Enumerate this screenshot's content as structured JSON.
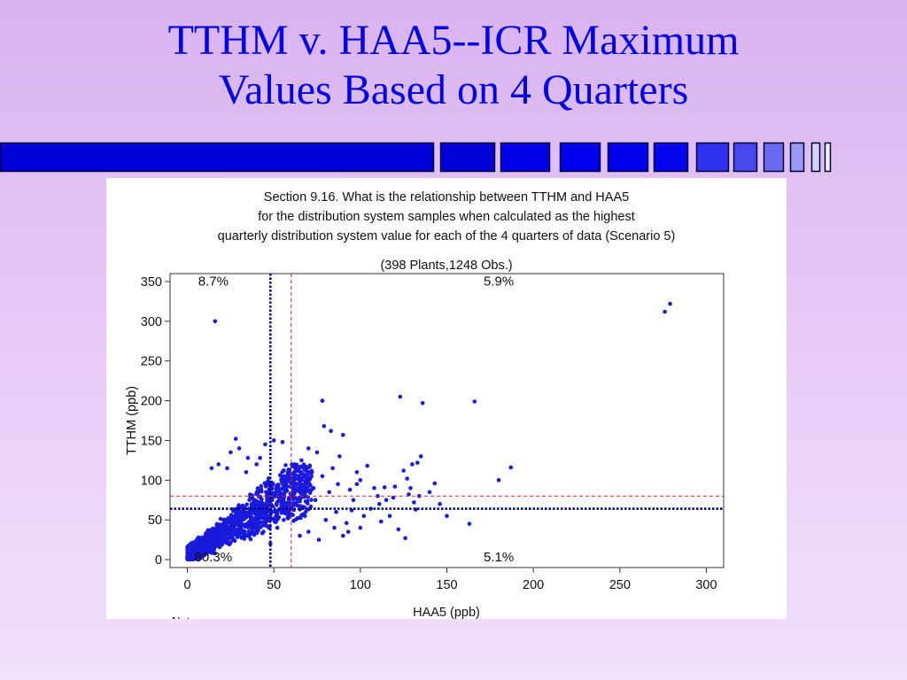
{
  "slide": {
    "title_line1": "TTHM v. HAA5--ICR Maximum",
    "title_line2": "Values Based on 4 Quarters"
  },
  "colors": {
    "title": "#0000e6",
    "points": "#1a1adc",
    "threshold_blue": "#00008b",
    "threshold_red": "#e02020"
  },
  "chart_data": {
    "type": "scatter",
    "title": [
      "Section 9.16. What is the relationship between TTHM and HAA5",
      "for the distribution system samples when calculated as the highest",
      "quarterly distribution system value for each of the 4 quarters of data (Scenario 5)"
    ],
    "subtitle": "(398 Plants,1248 Obs.)",
    "xlabel": "HAA5 (ppb)",
    "ylabel": "TTHM (ppb)",
    "xlim": [
      -10,
      310
    ],
    "ylim": [
      -10,
      360
    ],
    "xticks": [
      0,
      50,
      100,
      150,
      200,
      250,
      300
    ],
    "yticks": [
      0,
      50,
      100,
      150,
      200,
      250,
      300,
      350
    ],
    "grid": false,
    "footnote": "Note:",
    "reference_lines": [
      {
        "axis": "x",
        "value": 48,
        "style": "dotted",
        "color": "#00008b"
      },
      {
        "axis": "x",
        "value": 60,
        "style": "dashed",
        "color": "#e02020"
      },
      {
        "axis": "y",
        "value": 64,
        "style": "dotted",
        "color": "#00008b"
      },
      {
        "axis": "y",
        "value": 80,
        "style": "dashed",
        "color": "#e02020"
      }
    ],
    "quadrant_labels": [
      {
        "text": "8.7%",
        "x": 15,
        "y": 345
      },
      {
        "text": "5.9%",
        "x": 180,
        "y": 345
      },
      {
        "text": "80.3%",
        "x": 15,
        "y": -2
      },
      {
        "text": "5.1%",
        "x": 180,
        "y": -2
      }
    ],
    "cluster": {
      "count": 1248,
      "description": "dense cloud of observations at low HAA5 / TTHM",
      "x_range": [
        0,
        80
      ],
      "y_range": [
        0,
        120
      ]
    },
    "points": [
      [
        16,
        300
      ],
      [
        276,
        312
      ],
      [
        279,
        322
      ],
      [
        123,
        205
      ],
      [
        136,
        197
      ],
      [
        166,
        199
      ],
      [
        78,
        200
      ],
      [
        79,
        168
      ],
      [
        83,
        162
      ],
      [
        90,
        157
      ],
      [
        187,
        116
      ],
      [
        180,
        100
      ],
      [
        143,
        96
      ],
      [
        125,
        112
      ],
      [
        127,
        102
      ],
      [
        130,
        120
      ],
      [
        133,
        122
      ],
      [
        135,
        130
      ],
      [
        129,
        90
      ],
      [
        128,
        82
      ],
      [
        131,
        72
      ],
      [
        132,
        63
      ],
      [
        134,
        80
      ],
      [
        120,
        92
      ],
      [
        114,
        91
      ],
      [
        108,
        90
      ],
      [
        100,
        100
      ],
      [
        98,
        110
      ],
      [
        104,
        118
      ],
      [
        96,
        75
      ],
      [
        95,
        62
      ],
      [
        92,
        46
      ],
      [
        112,
        48
      ],
      [
        122,
        38
      ],
      [
        126,
        27
      ],
      [
        117,
        55
      ],
      [
        119,
        78
      ],
      [
        111,
        70
      ],
      [
        163,
        45
      ],
      [
        140,
        85
      ],
      [
        146,
        70
      ],
      [
        150,
        55
      ],
      [
        88,
        130
      ],
      [
        84,
        115
      ],
      [
        87,
        95
      ],
      [
        86,
        60
      ],
      [
        75,
        135
      ],
      [
        70,
        140
      ],
      [
        66,
        125
      ],
      [
        62,
        120
      ],
      [
        58,
        110
      ],
      [
        55,
        148
      ],
      [
        50,
        150
      ],
      [
        45,
        145
      ],
      [
        42,
        128
      ],
      [
        40,
        120
      ],
      [
        28,
        152
      ],
      [
        30,
        140
      ],
      [
        35,
        128
      ],
      [
        25,
        135
      ],
      [
        18,
        120
      ],
      [
        14,
        115
      ],
      [
        23,
        115
      ],
      [
        34,
        110
      ],
      [
        72,
        110
      ],
      [
        78,
        105
      ],
      [
        82,
        85
      ],
      [
        74,
        75
      ],
      [
        80,
        50
      ],
      [
        85,
        40
      ],
      [
        90,
        30
      ],
      [
        76,
        25
      ],
      [
        70,
        35
      ],
      [
        65,
        30
      ],
      [
        68,
        55
      ],
      [
        73,
        90
      ],
      [
        62,
        95
      ],
      [
        58,
        92
      ],
      [
        55,
        100
      ],
      [
        52,
        40
      ],
      [
        48,
        20
      ],
      [
        44,
        35
      ],
      [
        102,
        55
      ],
      [
        106,
        64
      ],
      [
        94,
        88
      ],
      [
        98,
        95
      ],
      [
        110,
        80
      ],
      [
        115,
        75
      ],
      [
        93,
        35
      ],
      [
        100,
        40
      ]
    ]
  }
}
